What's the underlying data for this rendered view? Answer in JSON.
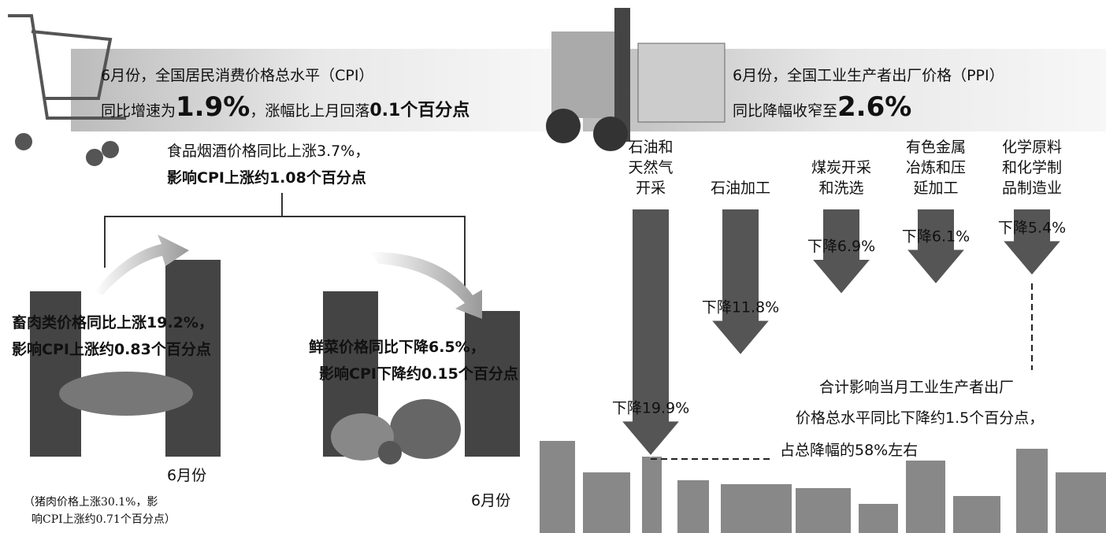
{
  "cpi": {
    "headline": "6月份，全国居民消费价格总水平（CPI）",
    "line2": [
      "同比增速为",
      "1.9%",
      "，涨幅比上月回落",
      "0.1个百分点"
    ],
    "food": [
      "食品烟酒价格同比上涨3.7%，",
      "影响CPI上涨约1.08个百分点"
    ],
    "meat": {
      "lines": [
        "畜肉类价格同比上涨19.2%，",
        "影响CPI上涨约0.83个百分点"
      ],
      "month": "6月份",
      "note": [
        "（猪肉价格上涨30.1%，影",
        "响CPI上涨约0.71个百分点）"
      ]
    },
    "vegetables": {
      "lines": [
        "鲜菜价格同比下降6.5%，",
        "影响CPI下降约0.15个百分点"
      ],
      "month": "6月份"
    }
  },
  "ppi": {
    "headline": "6月份，全国工业生产者出厂价格（PPI）",
    "line2": [
      "同比降幅收窄至",
      "2.6%"
    ],
    "categories": [
      [
        "石油和",
        "天然气",
        "开采"
      ],
      [
        "石油加工"
      ],
      [
        "煤炭开采",
        "和洗选"
      ],
      [
        "有色金属",
        "冶炼和压",
        "延加工"
      ],
      [
        "化学原料",
        "和化学制",
        "品制造业"
      ]
    ],
    "values": [
      19.9,
      11.8,
      6.9,
      6.1,
      5.4
    ],
    "value_labels": [
      "下降19.9%",
      "下降11.8%",
      "下降6.9%",
      "下降6.1%",
      "下降5.4%"
    ],
    "summary": [
      "合计影响当月工业生产者出厂",
      "价格总水平同比下降约1.5个百分点，",
      "占总降幅的58%左右"
    ]
  }
}
